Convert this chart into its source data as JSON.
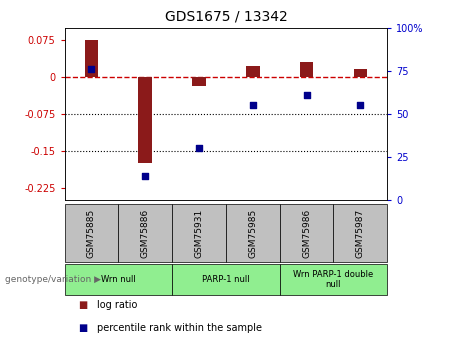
{
  "title": "GDS1675 / 13342",
  "samples": [
    "GSM75885",
    "GSM75886",
    "GSM75931",
    "GSM75985",
    "GSM75986",
    "GSM75987"
  ],
  "log_ratio": [
    0.075,
    -0.175,
    -0.018,
    0.022,
    0.03,
    0.015
  ],
  "percentile_rank": [
    76,
    14,
    30,
    55,
    61,
    55
  ],
  "ylim_left": [
    -0.25,
    0.1
  ],
  "ylim_right": [
    0,
    100
  ],
  "yticks_left": [
    0.075,
    0,
    -0.075,
    -0.15,
    -0.225
  ],
  "yticks_right": [
    100,
    75,
    50,
    25,
    0
  ],
  "groups": [
    {
      "label": "Wrn null",
      "start": 0,
      "end": 2
    },
    {
      "label": "PARP-1 null",
      "start": 2,
      "end": 4
    },
    {
      "label": "Wrn PARP-1 double\nnull",
      "start": 4,
      "end": 6
    }
  ],
  "group_color": "#90EE90",
  "sample_box_color": "#C0C0C0",
  "bar_color": "#8B1A1A",
  "scatter_color": "#00008B",
  "hline_color": "#CC0000",
  "dotted_line_color": "#000000",
  "legend_bar_label": "log ratio",
  "legend_scatter_label": "percentile rank within the sample",
  "genotype_label": "genotype/variation",
  "background_color": "#ffffff"
}
